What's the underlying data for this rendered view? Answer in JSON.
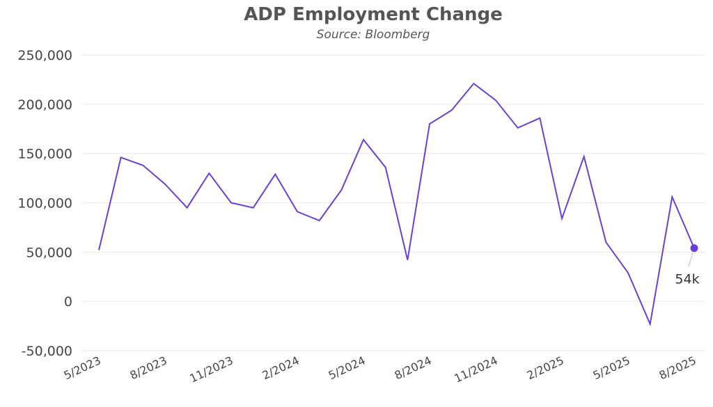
{
  "chart_data": {
    "type": "line",
    "title": "ADP Employment Change",
    "subtitle": "Source: Bloomberg",
    "xlabel": "",
    "ylabel": "",
    "ylim": [
      -50000,
      250000
    ],
    "yticks": [
      250000,
      200000,
      150000,
      100000,
      50000,
      0,
      -50000
    ],
    "ytick_labels": [
      "250,000",
      "200,000",
      "150,000",
      "100,000",
      "50,000",
      "0",
      "-50,000"
    ],
    "x": [
      "5/2023",
      "6/2023",
      "7/2023",
      "8/2023",
      "9/2023",
      "10/2023",
      "11/2023",
      "12/2023",
      "1/2024",
      "2/2024",
      "3/2024",
      "4/2024",
      "5/2024",
      "6/2024",
      "7/2024",
      "8/2024",
      "9/2024",
      "10/2024",
      "11/2024",
      "12/2024",
      "1/2025",
      "2/2025",
      "3/2025",
      "4/2025",
      "5/2025",
      "6/2025",
      "7/2025",
      "8/2025"
    ],
    "xtick_labels": [
      "5/2023",
      "8/2023",
      "11/2023",
      "2/2024",
      "5/2024",
      "8/2024",
      "11/2024",
      "2/2025",
      "5/2025",
      "8/2025"
    ],
    "series": [
      {
        "values": [
          52000,
          146000,
          138000,
          119000,
          95000,
          130000,
          100000,
          95000,
          129000,
          91000,
          82000,
          113000,
          164000,
          136000,
          42000,
          180000,
          194000,
          221000,
          204000,
          176000,
          186000,
          84000,
          147000,
          60000,
          29000,
          -23000,
          106000,
          54000
        ]
      }
    ],
    "annotation": {
      "text": "54k"
    },
    "grid": true,
    "legend": "none",
    "colors": {
      "line": "#6a3fd4",
      "grid": "#e6e6e6",
      "text": "#444444"
    }
  }
}
